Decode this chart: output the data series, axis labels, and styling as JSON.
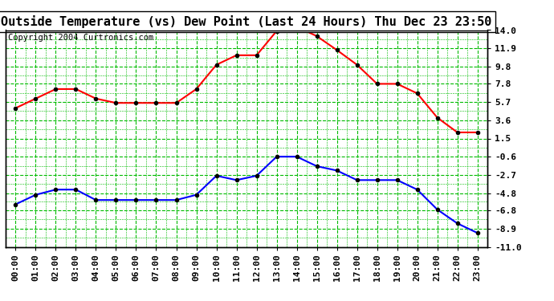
{
  "title": "Outside Temperature (vs) Dew Point (Last 24 Hours) Thu Dec 23 23:50",
  "copyright": "Copyright 2004 Curtronics.com",
  "x_labels": [
    "00:00",
    "01:00",
    "02:00",
    "03:00",
    "04:00",
    "05:00",
    "06:00",
    "07:00",
    "08:00",
    "09:00",
    "10:00",
    "11:00",
    "12:00",
    "13:00",
    "14:00",
    "15:00",
    "16:00",
    "17:00",
    "18:00",
    "19:00",
    "20:00",
    "21:00",
    "22:00",
    "23:00"
  ],
  "temp_data": [
    5.0,
    6.1,
    7.2,
    7.2,
    6.1,
    5.6,
    5.6,
    5.6,
    5.6,
    7.2,
    10.0,
    11.1,
    11.1,
    13.9,
    14.4,
    13.3,
    11.7,
    10.0,
    7.8,
    7.8,
    6.7,
    3.9,
    2.2,
    2.2
  ],
  "dew_data": [
    -6.1,
    -5.0,
    -4.4,
    -4.4,
    -5.6,
    -5.6,
    -5.6,
    -5.6,
    -5.6,
    -5.0,
    -2.8,
    -3.3,
    -2.8,
    -0.6,
    -0.6,
    -1.7,
    -2.2,
    -3.3,
    -3.3,
    -3.3,
    -4.4,
    -6.7,
    -8.3,
    -9.4
  ],
  "temp_color": "#ff0000",
  "dew_color": "#0000ff",
  "bg_color": "#ffffff",
  "grid_color": "#00bb00",
  "ylim": [
    -11.0,
    14.0
  ],
  "yticks": [
    14.0,
    11.9,
    9.8,
    7.8,
    5.7,
    3.6,
    1.5,
    -0.6,
    -2.7,
    -4.8,
    -6.8,
    -8.9,
    -11.0
  ],
  "ytick_labels": [
    "14.0",
    "11.9",
    "9.8",
    "7.8",
    "5.7",
    "3.6",
    "1.5",
    "-0.6",
    "-2.7",
    "-4.8",
    "-6.8",
    "-8.9",
    "-11.0"
  ],
  "marker": "o",
  "marker_size": 3,
  "linewidth": 1.5,
  "title_fontsize": 11,
  "tick_fontsize": 8
}
